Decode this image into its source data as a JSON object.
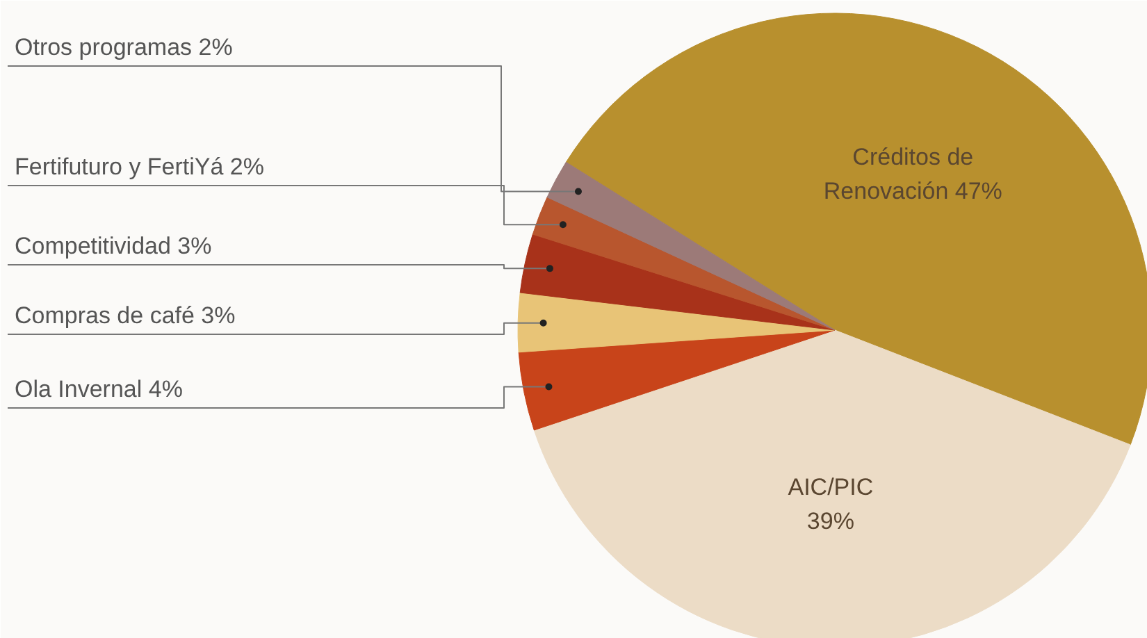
{
  "chart_data": {
    "type": "pie",
    "categories": [
      "Créditos de Renovación",
      "AIC/PIC",
      "Ola Invernal",
      "Compras de café",
      "Competitividad",
      "Fertifuturo y FertiYá",
      "Otros programas"
    ],
    "values": [
      47,
      39,
      4,
      3,
      3,
      2,
      2
    ],
    "value_labels": [
      "47%",
      "39%",
      "4%",
      "3%",
      "3%",
      "2%",
      "2%"
    ],
    "colors": [
      "#b8902e",
      "#ecdcc6",
      "#c8441a",
      "#e8c477",
      "#a8321a",
      "#b8562e",
      "#9c7a78"
    ]
  }
}
